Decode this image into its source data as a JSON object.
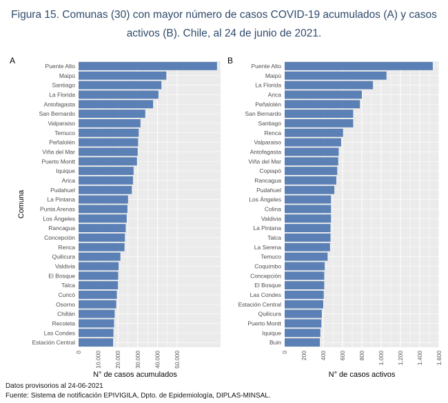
{
  "figure": {
    "title_line1": "Figura 15. Comunas (30) con mayor número de casos COVID-19 acumulados (A) y casos",
    "title_line2": "activos (B). Chile, al 24 de junio de 2021.",
    "footnote1": "Datos provisorios al 24-06-2021",
    "footnote2": "Fuente: Sistema de notificación EPIVIGILA, Dpto. de Epidemiología, DIPLAS-MINSAL."
  },
  "colors": {
    "bar": "#5b80b5",
    "panel": "#ebebeb",
    "grid": "#ffffff",
    "tick_text": "#4d4d4d"
  },
  "chart_data": [
    {
      "panel": "A",
      "type": "bar",
      "orientation": "horizontal",
      "ylabel": "Comuna",
      "xlabel": "N° de casos acumulados",
      "xlim": [
        0,
        72000
      ],
      "xticks": [
        0,
        10000,
        20000,
        30000,
        40000,
        50000
      ],
      "xtick_labels": [
        "0",
        "10.000",
        "20.000",
        "30.000",
        "40.000",
        "50.000"
      ],
      "grid": true,
      "categories": [
        "Puente Alto",
        "Maipú",
        "Santiago",
        "La Florida",
        "Antofagasta",
        "San Bernardo",
        "Valparaiso",
        "Temuco",
        "Peñalolén",
        "Viña del Mar",
        "Puerto Montt",
        "Iquique",
        "Arica",
        "Pudahuel",
        "La Pintana",
        "Punta Arenas",
        "Los Ángeles",
        "Rancagua",
        "Concepción",
        "Renca",
        "Quilicura",
        "Valdivia",
        "El Bosque",
        "Talca",
        "Curicó",
        "Osorno",
        "Chillán",
        "Recoleta",
        "Las Condes",
        "Estación Central"
      ],
      "values": [
        70200,
        44500,
        42000,
        40500,
        37800,
        33800,
        31400,
        30500,
        30200,
        30000,
        29600,
        27900,
        27600,
        27000,
        25100,
        24800,
        24400,
        23900,
        23500,
        23300,
        21200,
        20300,
        20100,
        20000,
        19400,
        19100,
        18300,
        18000,
        17700,
        17500
      ]
    },
    {
      "panel": "B",
      "type": "bar",
      "orientation": "horizontal",
      "ylabel": "",
      "xlabel": "N° de casos activos",
      "xlim": [
        0,
        1600
      ],
      "xticks": [
        0,
        200,
        400,
        600,
        800,
        1000,
        1200,
        1400,
        1600
      ],
      "xtick_labels": [
        "0",
        "200",
        "400",
        "600",
        "800",
        "1.000",
        "1.200",
        "1.400",
        "1.600"
      ],
      "grid": true,
      "categories": [
        "Puente Alto",
        "Maipú",
        "La Florida",
        "Arica",
        "Peñalolén",
        "San Bernardo",
        "Santiago",
        "Renca",
        "Valparaiso",
        "Antofagasta",
        "Viña del Mar",
        "Copiapó",
        "Rancagua",
        "Pudahuel",
        "Los Ángeles",
        "Colina",
        "Valdivia",
        "La Pintana",
        "Talca",
        "La Serena",
        "Temuco",
        "Coquimbo",
        "Concepción",
        "El Bosque",
        "Las Condes",
        "Estación Central",
        "Quilicura",
        "Puerto Montt",
        "Iquique",
        "Buin"
      ],
      "values": [
        1535,
        1055,
        915,
        800,
        780,
        710,
        710,
        605,
        585,
        560,
        555,
        545,
        535,
        515,
        480,
        480,
        480,
        475,
        475,
        470,
        445,
        415,
        410,
        410,
        405,
        400,
        385,
        380,
        370,
        365
      ]
    }
  ]
}
